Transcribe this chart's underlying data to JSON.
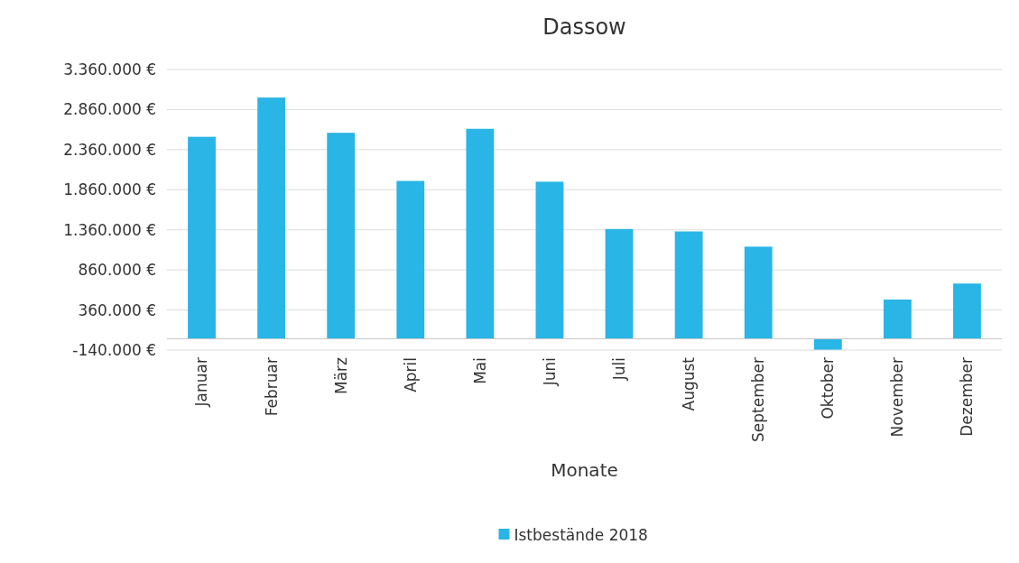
{
  "chart_data": {
    "type": "bar",
    "title": "Dassow",
    "xlabel": "Monate",
    "categories": [
      "Januar",
      "Februar",
      "März",
      "April",
      "Mai",
      "Juni",
      "Juli",
      "August",
      "September",
      "Oktober",
      "November",
      "Dezember"
    ],
    "series": [
      {
        "name": "Istbestände 2018",
        "color": "#29b5e5",
        "values": [
          2520000,
          3010000,
          2570000,
          1970000,
          2620000,
          1960000,
          1370000,
          1340000,
          1150000,
          -135000,
          490000,
          690000
        ]
      }
    ],
    "ylim": [
      -140000,
      3360000
    ],
    "yticks": [
      {
        "value": -140000,
        "label": "-140.000 €"
      },
      {
        "value": 360000,
        "label": "360.000 €"
      },
      {
        "value": 860000,
        "label": "860.000 €"
      },
      {
        "value": 1360000,
        "label": "1.360.000 €"
      },
      {
        "value": 1860000,
        "label": "1.860.000 €"
      },
      {
        "value": 2360000,
        "label": "2.360.000 €"
      },
      {
        "value": 2860000,
        "label": "2.860.000 €"
      },
      {
        "value": 3360000,
        "label": "3.360.000 €"
      }
    ],
    "grid": "y",
    "legend": "bottom"
  }
}
